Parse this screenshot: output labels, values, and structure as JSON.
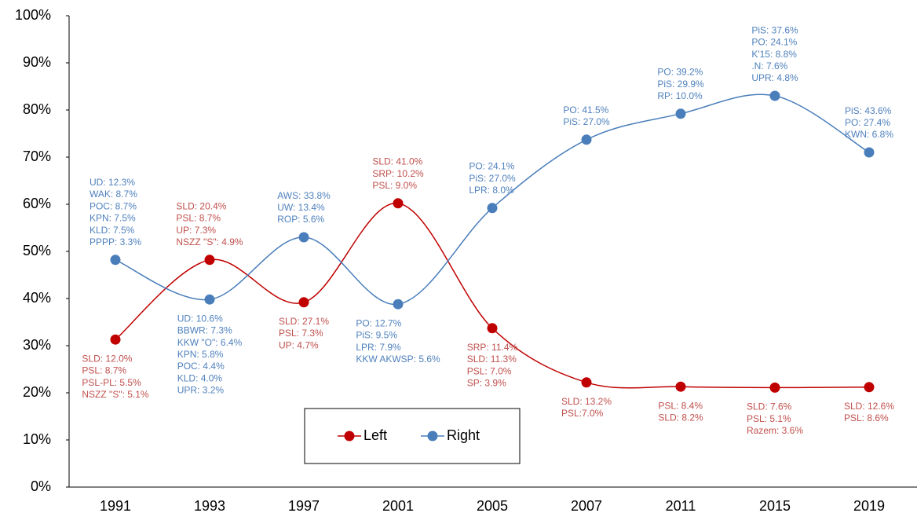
{
  "chart_data": {
    "type": "line",
    "categories": [
      "1991",
      "1993",
      "1997",
      "2001",
      "2005",
      "2007",
      "2011",
      "2015",
      "2019"
    ],
    "ylim": [
      0,
      100
    ],
    "yticks": [
      {
        "value": 0,
        "label": "0%"
      },
      {
        "value": 10,
        "label": "10%"
      },
      {
        "value": 20,
        "label": "20%"
      },
      {
        "value": 30,
        "label": "30%"
      },
      {
        "value": 40,
        "label": "40%"
      },
      {
        "value": 50,
        "label": "50%"
      },
      {
        "value": 60,
        "label": "60%"
      },
      {
        "value": 70,
        "label": "70%"
      },
      {
        "value": 80,
        "label": "80%"
      },
      {
        "value": 90,
        "label": "90%"
      },
      {
        "value": 100,
        "label": "100%"
      }
    ],
    "legend": "bottom",
    "series": [
      {
        "name": "Left",
        "color": "#c00000",
        "label_color": "#c0504d",
        "values": [
          31.3,
          48.2,
          39.2,
          60.2,
          33.7,
          22.2,
          21.3,
          21.1,
          21.2
        ],
        "annotations": [
          [
            "SLD: 12.0%",
            "PSL: 8.7%",
            "PSL-PL: 5.5%",
            "NSZZ \"S\": 5.1%"
          ],
          [
            "SLD: 20.4%",
            "PSL: 8.7%",
            "UP: 7.3%",
            "NSZZ \"S\": 4.9%"
          ],
          [
            "SLD: 27.1%",
            "PSL: 7.3%",
            "UP: 4.7%"
          ],
          [
            "SLD: 41.0%",
            "SRP: 10.2%",
            "PSL: 9.0%"
          ],
          [
            "SRP: 11.4%",
            "SLD: 11.3%",
            "PSL: 7.0%",
            "SP: 3.9%"
          ],
          [
            "SLD: 13.2%",
            "PSL:7.0%"
          ],
          [
            "PSL: 8.4%",
            "SLD: 8.2%"
          ],
          [
            "SLD: 7.6%",
            "PSL: 5.1%",
            "Razem: 3.6%"
          ],
          [
            "SLD: 12.6%",
            "PSL: 8.6%"
          ]
        ]
      },
      {
        "name": "Right",
        "color": "#4a7ebb",
        "label_color": "#4f81bd",
        "values": [
          48.2,
          39.8,
          53.0,
          38.8,
          59.2,
          73.7,
          79.2,
          83.0,
          71.0
        ],
        "annotations": [
          [
            "UD: 12.3%",
            "WAK: 8.7%",
            "POC: 8.7%",
            "KPN: 7.5%",
            "KLD: 7.5%",
            "PPPP: 3.3%"
          ],
          [
            "UD: 10.6%",
            "BBWR: 7.3%",
            "KKW \"O\": 6.4%",
            "KPN: 5.8%",
            "POC: 4.4%",
            "KLD: 4.0%",
            "UPR: 3.2%"
          ],
          [
            "AWS: 33.8%",
            "UW: 13.4%",
            "ROP: 5.6%"
          ],
          [
            "PO: 12.7%",
            "PiS: 9.5%",
            "LPR: 7.9%",
            "KKW AKWSP: 5.6%"
          ],
          [
            "PO: 24.1%",
            "PiS: 27.0%",
            "LPR: 8.0%"
          ],
          [
            "PO: 41.5%",
            "PiS: 27.0%"
          ],
          [
            "PO: 39.2%",
            "PiS: 29.9%",
            "RP: 10.0%"
          ],
          [
            "PiS: 37.6%",
            "PO: 24.1%",
            "K'15: 8.8%",
            ".N: 7.6%",
            "UPR: 4.8%"
          ],
          [
            "PiS: 43.6%",
            "PO: 27.4%",
            "KWN: 6.8%"
          ]
        ]
      }
    ]
  }
}
